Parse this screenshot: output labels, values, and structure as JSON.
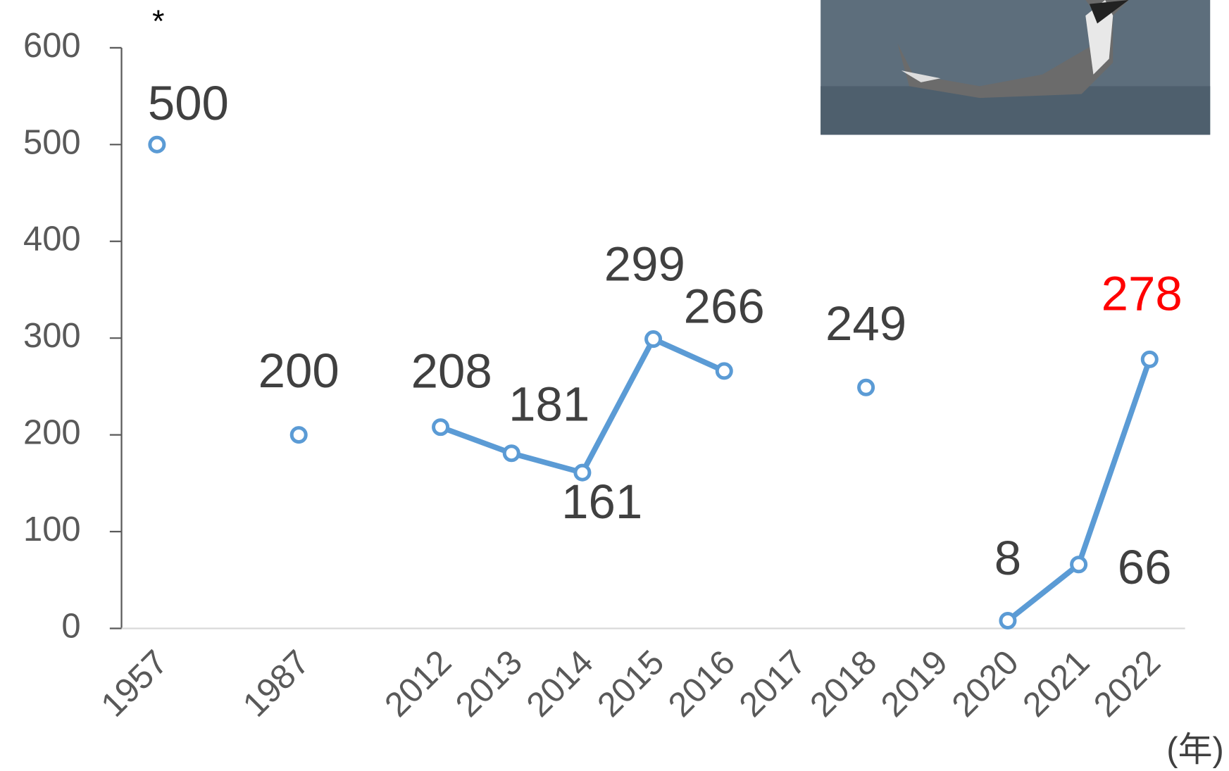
{
  "chart_data": {
    "type": "line",
    "categories": [
      "1957",
      null,
      "1987",
      null,
      "2012",
      "2013",
      "2014",
      "2015",
      "2016",
      "2017",
      "2018",
      "2019",
      "2020",
      "2021",
      "2022"
    ],
    "series": [
      {
        "color": "#5b9bd5",
        "values": [
          500,
          null,
          200,
          null,
          208,
          181,
          161,
          299,
          266,
          null,
          249,
          null,
          8,
          66,
          278
        ]
      }
    ],
    "value_label_colors": [
      "#404040",
      null,
      "#404040",
      null,
      "#404040",
      "#404040",
      "#404040",
      "#404040",
      "#404040",
      null,
      "#404040",
      null,
      "#404040",
      "#404040",
      "#ff0000"
    ],
    "ylim": [
      0,
      600
    ],
    "yticks": [
      0,
      100,
      200,
      300,
      400,
      500,
      600
    ],
    "annotation": "*",
    "xlabel": "(年)"
  }
}
